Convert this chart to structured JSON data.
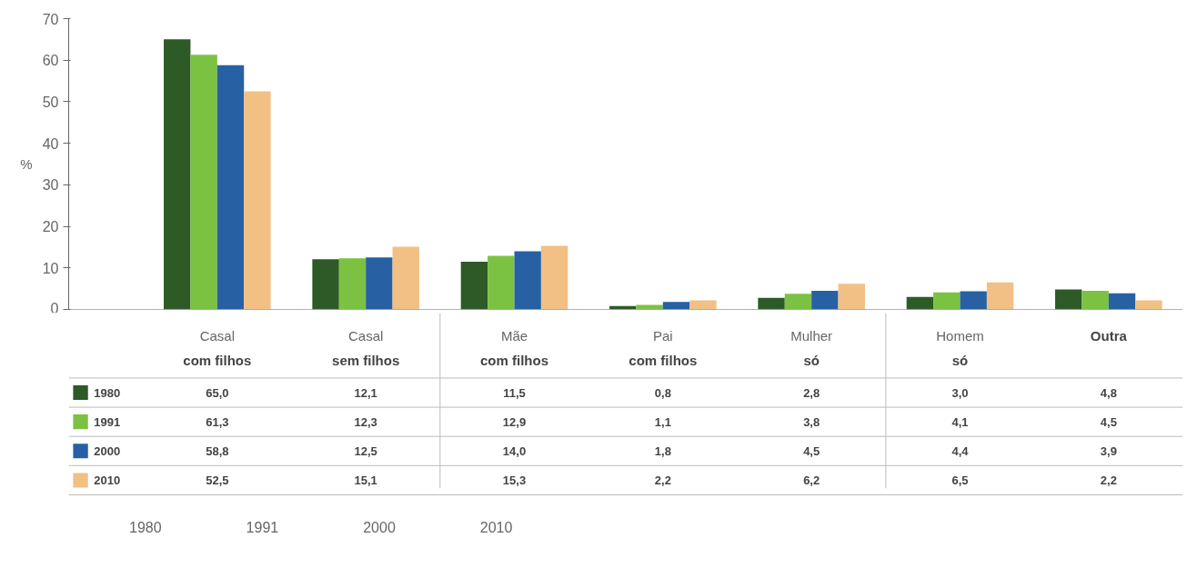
{
  "chart_data": {
    "type": "bar",
    "categories": [
      "Casal\ncom filhos",
      "Casal\nsem filhos",
      "Mãe\ncom filhos",
      "Pai\ncom filhos",
      "Mulher\nsó",
      "Homem\nsó",
      "Outra"
    ],
    "ylabel": "%",
    "ylim": [
      0,
      70
    ],
    "yticks": [
      0,
      10,
      20,
      30,
      40,
      50,
      60,
      70
    ],
    "grid": false,
    "legend": "bottom left",
    "data_labels": true,
    "series": [
      {
        "name": "1980",
        "color": "#2d5a27",
        "values": [
          65.0,
          12.1,
          11.5,
          0.8,
          2.8,
          3.0,
          4.8
        ],
        "value_labels": [
          "65,0",
          "12,1",
          "11,5",
          "0,8",
          "2,8",
          "3,0",
          "4,8"
        ]
      },
      {
        "name": "1991",
        "color": "#7cc242",
        "values": [
          61.3,
          12.3,
          12.9,
          1.1,
          3.8,
          4.1,
          4.5
        ],
        "value_labels": [
          "61,3",
          "12,3",
          "12,9",
          "1,1",
          "3,8",
          "4,1",
          "4,5"
        ]
      },
      {
        "name": "2000",
        "color": "#2761a3",
        "values": [
          58.8,
          12.5,
          14.0,
          1.8,
          4.5,
          4.4,
          3.9
        ],
        "value_labels": [
          "58,8",
          "12,5",
          "14,0",
          "1,8",
          "4,5",
          "4,4",
          "3,9"
        ]
      },
      {
        "name": "2010",
        "color": "#f2c084",
        "values": [
          52.5,
          15.1,
          15.3,
          2.2,
          6.2,
          6.5,
          2.2
        ],
        "value_labels": [
          "52,5",
          "15,1",
          "15,3",
          "2,2",
          "6,2",
          "6,5",
          "2,2"
        ]
      }
    ]
  }
}
